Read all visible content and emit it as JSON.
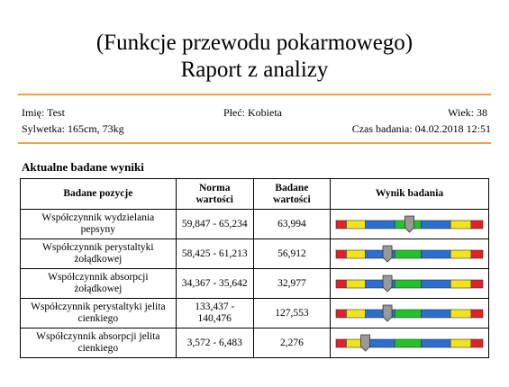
{
  "header": {
    "title": "(Funkcje przewodu pokarmowego)",
    "subtitle": "Raport z analizy"
  },
  "info": {
    "name": "Imię: Test",
    "sex": "Płeć: Kobieta",
    "age": "Wiek: 38",
    "figure": "Sylwetka: 165cm, 73kg",
    "time": "Czas badania: 04.02.2018 12:51"
  },
  "section": {
    "title": "Aktualne badane wyniki"
  },
  "table": {
    "headers": [
      "Badane pozycje",
      "Norma wartości",
      "Badane wartości",
      "Wynik badania"
    ],
    "rows": [
      [
        "Współczynnik wydzielania pepsyny",
        "59,847 - 65,234",
        "63,994"
      ],
      [
        "Współczynnik perystaltyki żołądkowej",
        "58,425 - 61,213",
        "56,912"
      ],
      [
        "Współczynnik absorpcji żołądkowej",
        "34,367 - 35,642",
        "32,977"
      ],
      [
        "Współczynnik perystaltyki jelita cienkiego",
        "133,437 - 140,476",
        "127,553"
      ],
      [
        "Współczynnik absorpcji jelita cienkiego",
        "3,572 - 6,483",
        "2,276"
      ]
    ],
    "gauge": [
      50,
      35,
      35,
      35,
      20
    ]
  }
}
